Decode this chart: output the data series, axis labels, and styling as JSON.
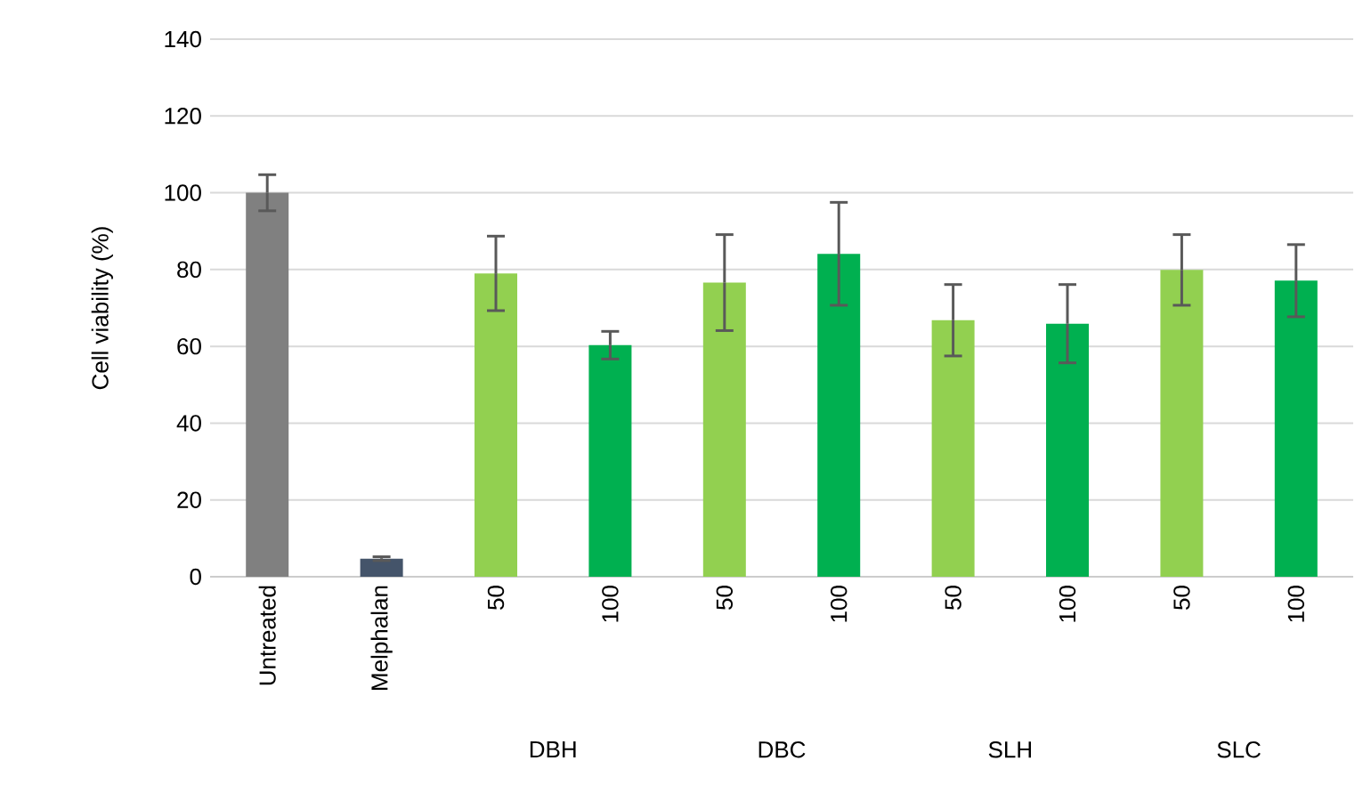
{
  "chart_data": {
    "type": "bar",
    "ylabel": "Cell viability (%)",
    "categories": [
      "Untreated",
      "Melphalan",
      "50",
      "100",
      "50",
      "100",
      "50",
      "100",
      "50",
      "100"
    ],
    "values": [
      100,
      4.7,
      79.0,
      60.3,
      76.6,
      84.1,
      66.8,
      65.9,
      79.9,
      77.1
    ],
    "errors": [
      4.7,
      0.5,
      9.7,
      3.6,
      12.5,
      13.4,
      9.3,
      10.2,
      9.2,
      9.4
    ],
    "colors": [
      "#808080",
      "#44546a",
      "#92d050",
      "#00b050",
      "#92d050",
      "#00b050",
      "#92d050",
      "#00b050",
      "#92d050",
      "#00b050"
    ],
    "annotations": [
      "DBH",
      "DBC",
      "SLH",
      "SLC"
    ],
    "ylim": [
      0,
      140
    ],
    "yticks": [
      0,
      20,
      40,
      60,
      80,
      100,
      120,
      140
    ],
    "grid": "y"
  }
}
